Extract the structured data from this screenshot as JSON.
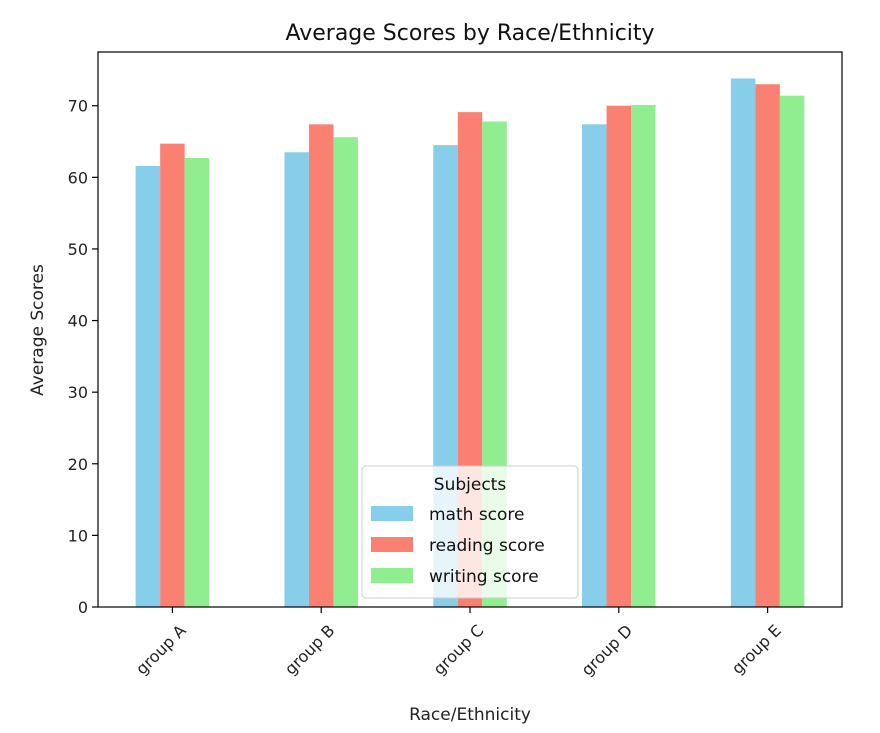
{
  "chart_data": {
    "type": "bar",
    "title": "Average Scores by Race/Ethnicity",
    "xlabel": "Race/Ethnicity",
    "ylabel": "Average Scores",
    "categories": [
      "group A",
      "group B",
      "group C",
      "group D",
      "group E"
    ],
    "series": [
      {
        "name": "math score",
        "color": "#87ceeb",
        "values": [
          61.6,
          63.5,
          64.5,
          67.4,
          73.8
        ]
      },
      {
        "name": "reading score",
        "color": "#fa8072",
        "values": [
          64.7,
          67.4,
          69.1,
          70.0,
          73.0
        ]
      },
      {
        "name": "writing score",
        "color": "#90ee90",
        "values": [
          62.7,
          65.6,
          67.8,
          70.1,
          71.4
        ]
      }
    ],
    "ylim": [
      0,
      77.5
    ],
    "yticks": [
      0,
      10,
      20,
      30,
      40,
      50,
      60,
      70
    ],
    "grid": false,
    "legend": {
      "title": "Subjects",
      "placement": "lower-center"
    }
  }
}
